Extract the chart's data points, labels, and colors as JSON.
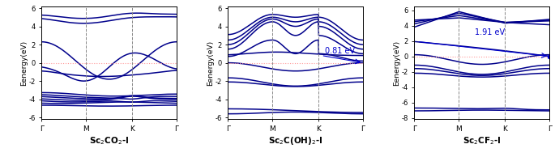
{
  "panels": [
    {
      "label": "Sc$_2$CO$_2$-I",
      "ylim": [
        -6.2,
        6.2
      ],
      "yticks": [
        -6,
        -4,
        -2,
        0,
        2,
        4,
        6
      ],
      "xticklabels": [
        "Γ",
        "M",
        "K",
        "Γ"
      ],
      "band_color": "#00008B",
      "fermi_color": "#ff9999",
      "vline_color": "#888888",
      "gap_text": null
    },
    {
      "label": "Sc$_2$C(OH)$_2$-I",
      "ylim": [
        -6.2,
        6.2
      ],
      "yticks": [
        -6,
        -4,
        -2,
        0,
        2,
        4,
        6
      ],
      "xticklabels": [
        "Γ",
        "M",
        "K",
        "Γ"
      ],
      "band_color": "#00008B",
      "fermi_color": "#ff9999",
      "vline_color": "#888888",
      "gap_text": "0.81 eV"
    },
    {
      "label": "Sc$_2$CF$_2$-I",
      "ylim": [
        -8.2,
        6.5
      ],
      "yticks": [
        -8,
        -6,
        -4,
        -2,
        0,
        2,
        4,
        6
      ],
      "xticklabels": [
        "Γ",
        "M",
        "K",
        "Γ"
      ],
      "band_color": "#00008B",
      "fermi_color": "#ff9999",
      "vline_color": "#888888",
      "gap_text": "1.91 eV"
    }
  ],
  "ylabel": "Eenergy(eV)",
  "kpoints": [
    0.0,
    0.33,
    0.67,
    1.0
  ]
}
